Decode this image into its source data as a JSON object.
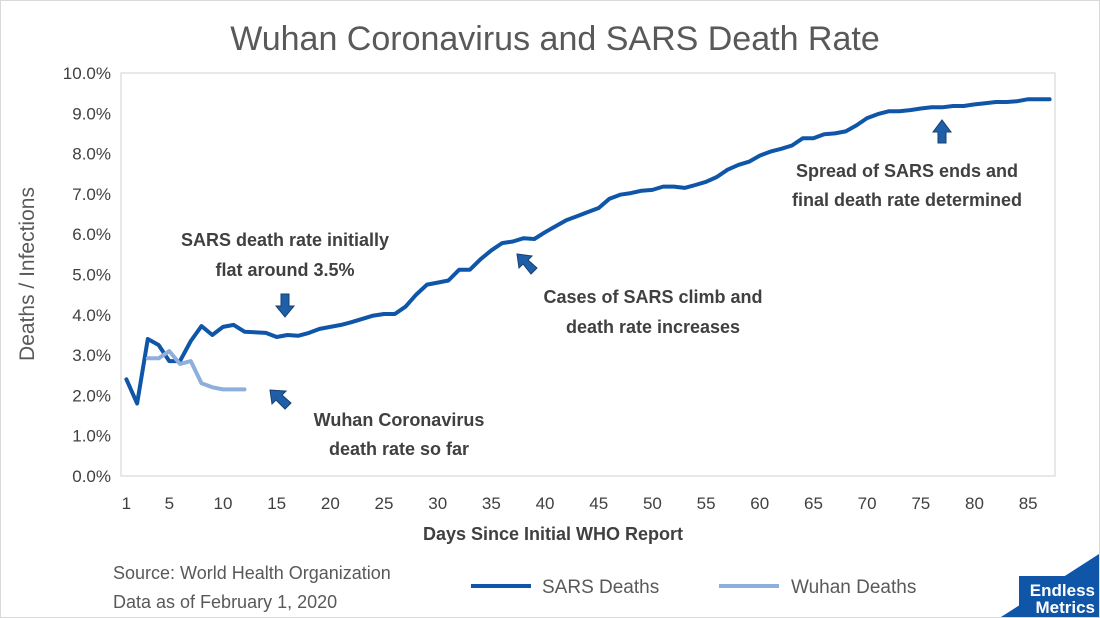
{
  "chart_data": {
    "type": "line",
    "title": "Wuhan Coronavirus and SARS Death Rate",
    "xlabel": "Days Since Initial WHO Report",
    "ylabel": "Deaths / Infections",
    "xlim": [
      0.5,
      87.5
    ],
    "ylim": [
      0,
      10
    ],
    "x_ticks": [
      1,
      5,
      10,
      15,
      20,
      25,
      30,
      35,
      40,
      45,
      50,
      55,
      60,
      65,
      70,
      75,
      80,
      85
    ],
    "y_ticks": [
      0,
      1,
      2,
      3,
      4,
      5,
      6,
      7,
      8,
      9,
      10
    ],
    "y_tick_labels": [
      "0.0%",
      "1.0%",
      "2.0%",
      "3.0%",
      "4.0%",
      "5.0%",
      "6.0%",
      "7.0%",
      "8.0%",
      "9.0%",
      "10.0%"
    ],
    "grid": false,
    "legend_position": "bottom",
    "series": [
      {
        "name": "SARS Deaths",
        "color": "#0f56a8",
        "x": [
          1,
          2,
          3,
          4,
          5,
          6,
          7,
          8,
          9,
          10,
          11,
          12,
          14,
          15,
          16,
          17,
          18,
          19,
          20,
          21,
          22,
          23,
          24,
          25,
          26,
          27,
          28,
          29,
          30,
          31,
          32,
          33,
          34,
          35,
          36,
          37,
          38,
          39,
          40,
          41,
          42,
          43,
          44,
          45,
          46,
          47,
          48,
          49,
          50,
          51,
          52,
          53,
          54,
          55,
          56,
          57,
          58,
          59,
          60,
          61,
          62,
          63,
          64,
          65,
          66,
          67,
          68,
          69,
          70,
          71,
          72,
          73,
          74,
          75,
          76,
          77,
          78,
          79,
          80,
          81,
          82,
          83,
          84,
          85,
          86,
          87
        ],
        "values": [
          2.4,
          1.8,
          3.4,
          3.25,
          2.85,
          2.85,
          3.35,
          3.72,
          3.5,
          3.7,
          3.75,
          3.58,
          3.55,
          3.45,
          3.5,
          3.48,
          3.55,
          3.65,
          3.7,
          3.75,
          3.82,
          3.9,
          3.98,
          4.02,
          4.02,
          4.2,
          4.5,
          4.75,
          4.8,
          4.85,
          5.12,
          5.12,
          5.38,
          5.6,
          5.78,
          5.82,
          5.9,
          5.88,
          6.05,
          6.2,
          6.35,
          6.45,
          6.55,
          6.65,
          6.88,
          6.98,
          7.02,
          7.08,
          7.1,
          7.18,
          7.18,
          7.15,
          7.22,
          7.3,
          7.42,
          7.6,
          7.72,
          7.8,
          7.95,
          8.05,
          8.12,
          8.2,
          8.38,
          8.38,
          8.48,
          8.5,
          8.55,
          8.7,
          8.88,
          8.98,
          9.05,
          9.05,
          9.08,
          9.12,
          9.15,
          9.15,
          9.18,
          9.18,
          9.22,
          9.25,
          9.28,
          9.28,
          9.3,
          9.35,
          9.35,
          9.35
        ]
      },
      {
        "name": "Wuhan Deaths",
        "color": "#8eaedb",
        "x": [
          3,
          4,
          5,
          6,
          7,
          8,
          9,
          10,
          11,
          12
        ],
        "values": [
          2.92,
          2.92,
          3.1,
          2.78,
          2.85,
          2.3,
          2.2,
          2.15,
          2.15,
          2.15
        ]
      }
    ],
    "annotations": [
      {
        "lines": [
          "SARS death rate initially",
          "flat around 3.5%"
        ],
        "arrow": "down"
      },
      {
        "lines": [
          "Cases of SARS climb and",
          "death rate increases"
        ],
        "arrow": "up-left"
      },
      {
        "lines": [
          "Spread of SARS ends and",
          "final death rate determined"
        ],
        "arrow": "up"
      },
      {
        "lines": [
          "Wuhan Coronavirus",
          "death rate so far"
        ],
        "arrow": "up-left"
      }
    ],
    "footer": {
      "source": "Source: World Health Organization",
      "asof": "Data as of February 1, 2020"
    },
    "brand": [
      "Endless",
      "Metrics"
    ]
  }
}
